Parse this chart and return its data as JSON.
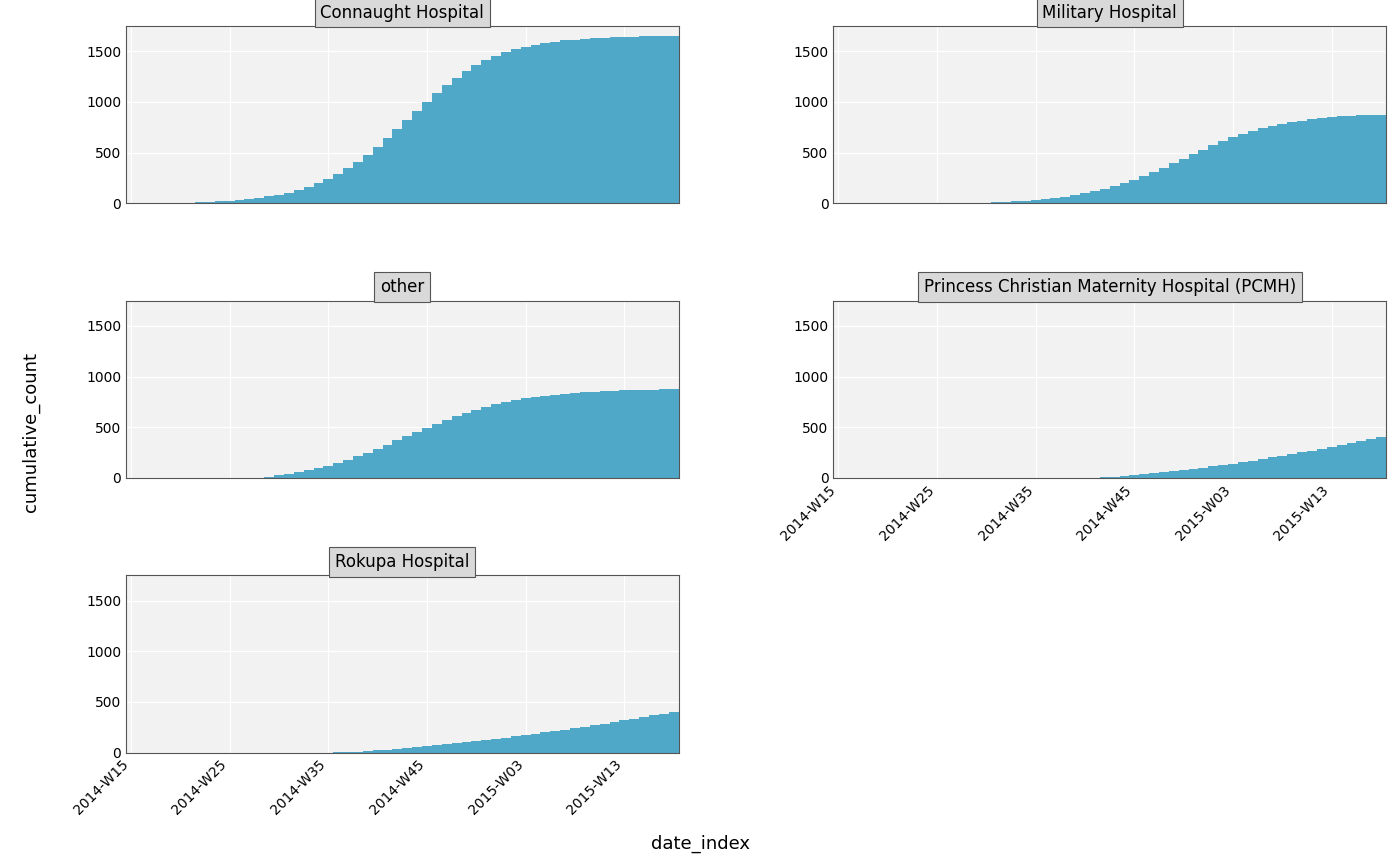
{
  "hospitals": [
    "Connaught Hospital",
    "Military Hospital",
    "other",
    "Princess Christian Maternity Hospital (PCMH)",
    "Rokupa Hospital"
  ],
  "bar_color": "#4fa8c8",
  "ylabel": "cumulative_count",
  "xlabel": "date_index",
  "background_color": "#ffffff",
  "panel_title_bg": "#d9d9d9",
  "panel_title_border": "#555555",
  "plot_bg": "#f2f2f2",
  "grid_color": "#ffffff",
  "ylim_all": [
    0,
    1750
  ],
  "yticks": [
    0,
    500,
    1000,
    1500
  ],
  "tick_label_fontsize": 10,
  "title_fontsize": 12,
  "axis_label_fontsize": 13
}
